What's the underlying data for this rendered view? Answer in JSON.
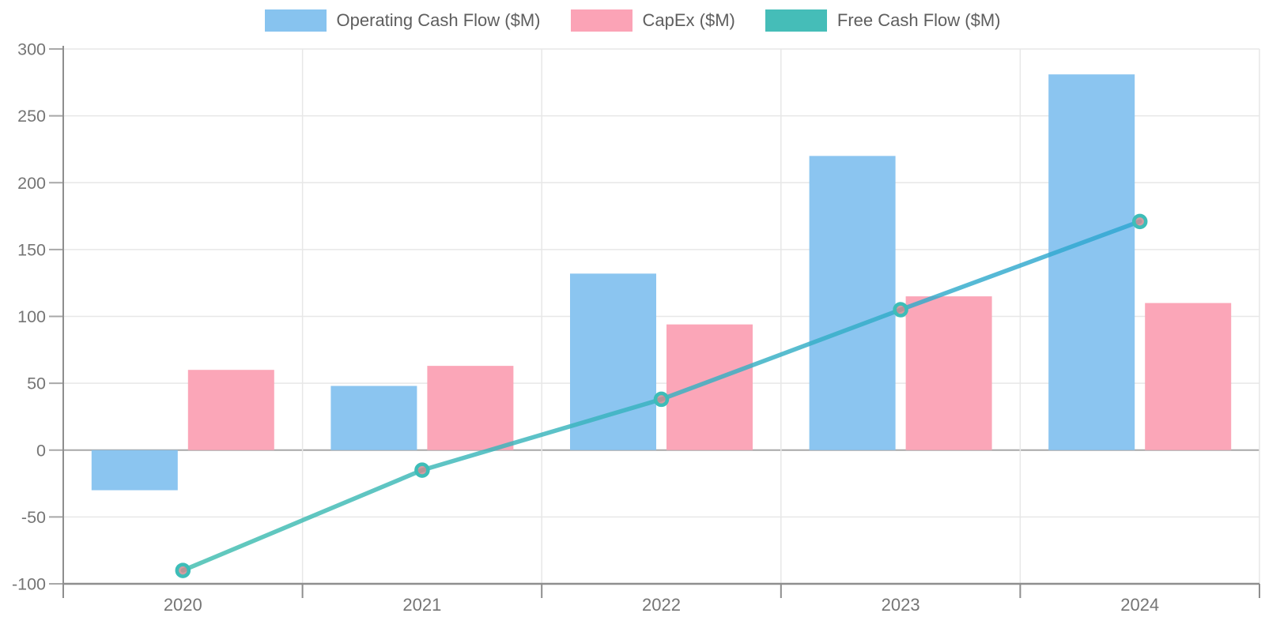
{
  "chart_data": {
    "type": "combo-bar-line",
    "title": "",
    "categories": [
      "2020",
      "2021",
      "2022",
      "2023",
      "2024"
    ],
    "series": [
      {
        "name": "Operating Cash Flow ($M)",
        "type": "bar",
        "color": "#87C3EF",
        "values": [
          -30,
          48,
          132,
          220,
          281
        ]
      },
      {
        "name": "CapEx ($M)",
        "type": "bar",
        "color": "#FBA3B6",
        "values": [
          60,
          63,
          94,
          115,
          110
        ]
      },
      {
        "name": "Free Cash Flow ($M)",
        "type": "line",
        "color": "#45BDB8",
        "line_gradient_start": "#3FBDAE",
        "line_gradient_end": "#2EA6D2",
        "marker_fill": "#C98C91",
        "marker_stroke": "#3DBDB8",
        "values": [
          -90,
          -15,
          38,
          105,
          171
        ]
      }
    ],
    "ylim": [
      -100,
      300
    ],
    "yticks": [
      300,
      250,
      200,
      150,
      100,
      50,
      0,
      -50,
      -100
    ],
    "grid": true,
    "legend_position": "top",
    "colors": {
      "grid_line": "#E7E7E7",
      "zero_line": "#A8A8A8",
      "axis_line": "#8E8E8E",
      "tick_text": "#757575"
    }
  }
}
